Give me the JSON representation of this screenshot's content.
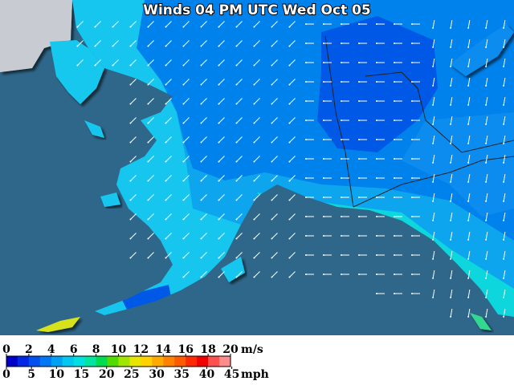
{
  "title": "Winds 04 PM UTC Wed Oct 05",
  "legend": {
    "ms_unit": "m/s",
    "mph_unit": "mph",
    "ms_ticks": [
      0,
      2,
      4,
      6,
      8,
      10,
      12,
      14,
      16,
      18,
      20
    ],
    "mph_ticks": [
      0,
      5,
      10,
      15,
      20,
      25,
      30,
      35,
      40,
      45
    ],
    "colors": [
      "#0000c8",
      "#0028e6",
      "#0050f0",
      "#0078f5",
      "#00a0f5",
      "#00c8f0",
      "#00e0e0",
      "#00e6a0",
      "#00dc50",
      "#50dc00",
      "#a0e600",
      "#e6e600",
      "#ffd200",
      "#ffaa00",
      "#ff8200",
      "#ff5a00",
      "#ff2800",
      "#f00000",
      "#ff5050",
      "#ff8c8c"
    ]
  }
}
